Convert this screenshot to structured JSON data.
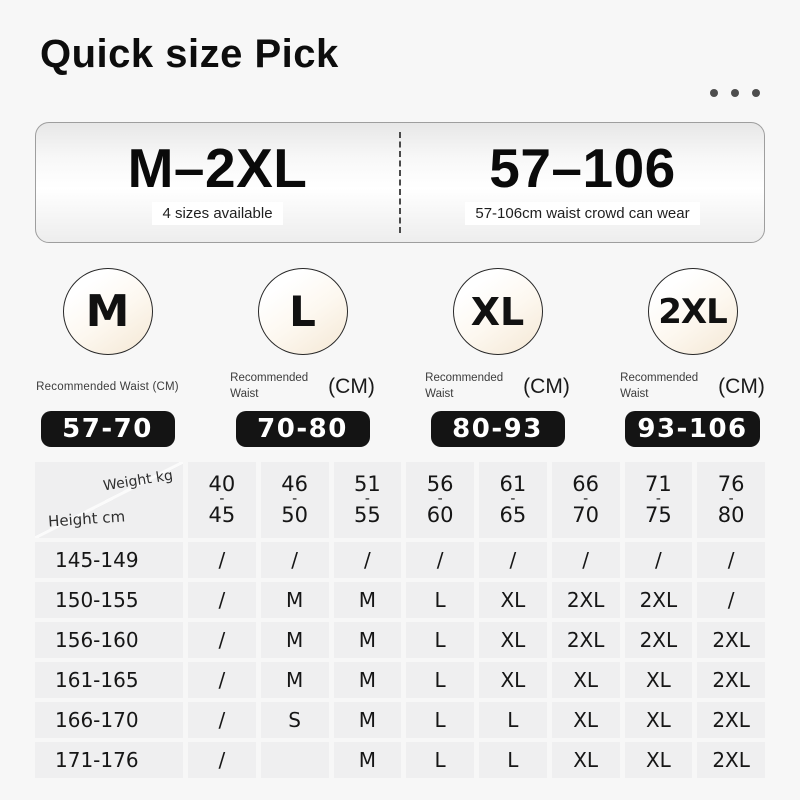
{
  "header": {
    "title": "Quick size Pick",
    "menu_icon": "ellipsis-icon"
  },
  "summary": {
    "left": {
      "value": "M–2XL",
      "caption": "4 sizes available"
    },
    "right": {
      "value": "57–106",
      "caption": "57-106cm waist crowd can wear"
    }
  },
  "sizes": [
    {
      "label": "M",
      "waist_label_inline": "Recommended Waist (CM)",
      "range": "57-70"
    },
    {
      "label": "L",
      "waist_label": "Recommended Waist",
      "unit": "(CM)",
      "range": "70-80"
    },
    {
      "label": "XL",
      "waist_label": "Recommended Waist",
      "unit": "(CM)",
      "range": "80-93"
    },
    {
      "label": "2XL",
      "waist_label": "Recommended Waist",
      "unit": "(CM)",
      "range": "93-106"
    }
  ],
  "size_table": {
    "corner_top": "Weight kg",
    "corner_bottom": "Height cm",
    "separator": "-",
    "weight_columns": [
      [
        "40",
        "45"
      ],
      [
        "46",
        "50"
      ],
      [
        "51",
        "55"
      ],
      [
        "56",
        "60"
      ],
      [
        "61",
        "65"
      ],
      [
        "66",
        "70"
      ],
      [
        "71",
        "75"
      ],
      [
        "76",
        "80"
      ]
    ],
    "rows": [
      {
        "height": "145-149",
        "cells": [
          "/",
          "/",
          "/",
          "/",
          "/",
          "/",
          "/",
          "/"
        ]
      },
      {
        "height": "150-155",
        "cells": [
          "/",
          "M",
          "M",
          "L",
          "XL",
          "2XL",
          "2XL",
          "/"
        ]
      },
      {
        "height": "156-160",
        "cells": [
          "/",
          "M",
          "M",
          "L",
          "XL",
          "2XL",
          "2XL",
          "2XL"
        ]
      },
      {
        "height": "161-165",
        "cells": [
          "/",
          "M",
          "M",
          "L",
          "XL",
          "XL",
          "XL",
          "2XL"
        ]
      },
      {
        "height": "166-170",
        "cells": [
          "/",
          "S",
          "M",
          "L",
          "L",
          "XL",
          "XL",
          "2XL"
        ]
      },
      {
        "height": "171-176",
        "cells": [
          "/",
          "",
          "M",
          "L",
          "L",
          "XL",
          "XL",
          "2XL"
        ]
      }
    ]
  },
  "colors": {
    "page_bg": "#f7f7f7",
    "cell_bg": "#efeff0",
    "pill_bg": "#141414",
    "circle_tint": "#f5e9d7"
  }
}
